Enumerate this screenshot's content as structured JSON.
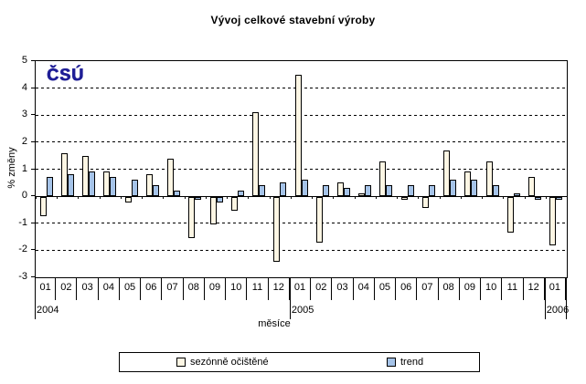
{
  "title": "Vývoj celkové stavební výroby",
  "logo_text": "ČSÚ",
  "logo_color": "#1f1e96",
  "colors": {
    "seasonal_fill": "#fdf6e4",
    "trend_fill": "#a5c3e8",
    "axis": "#000000"
  },
  "chart_data": {
    "type": "bar",
    "title": "Vývoj celkové stavební výroby",
    "xlabel": "měsíce",
    "ylabel": "% změny",
    "ylim": [
      -3,
      5
    ],
    "y_ticks": [
      5,
      4,
      3,
      2,
      1,
      0,
      -1,
      -2,
      -3
    ],
    "grid": "dashed horizontal lines at each integer, solid line at 0",
    "legend_position": "bottom-box",
    "categories": [
      "01",
      "02",
      "03",
      "04",
      "05",
      "06",
      "07",
      "08",
      "09",
      "10",
      "11",
      "12",
      "01",
      "02",
      "03",
      "04",
      "05",
      "06",
      "07",
      "08",
      "09",
      "10",
      "11",
      "12",
      "01"
    ],
    "year_groups": [
      {
        "year": "2004",
        "start": 0,
        "count": 12
      },
      {
        "year": "2005",
        "start": 12,
        "count": 12
      },
      {
        "year": "2006",
        "start": 24,
        "count": 1
      }
    ],
    "series": [
      {
        "name": "sezónně očištěné",
        "color": "#fdf6e4",
        "values": [
          -0.7,
          1.6,
          1.5,
          0.9,
          -0.2,
          0.8,
          1.4,
          -1.5,
          -1.0,
          -0.5,
          3.1,
          -2.4,
          4.5,
          -1.7,
          0.5,
          0.1,
          1.3,
          -0.1,
          -0.4,
          1.7,
          0.9,
          1.3,
          -1.3,
          0.7,
          -1.8
        ]
      },
      {
        "name": "trend",
        "color": "#a5c3e8",
        "values": [
          0.7,
          0.8,
          0.9,
          0.7,
          0.6,
          0.4,
          0.2,
          -0.1,
          -0.2,
          0.2,
          0.4,
          0.5,
          0.6,
          0.4,
          0.3,
          0.4,
          0.4,
          0.4,
          0.4,
          0.6,
          0.6,
          0.4,
          0.1,
          -0.1,
          -0.1
        ]
      }
    ]
  }
}
